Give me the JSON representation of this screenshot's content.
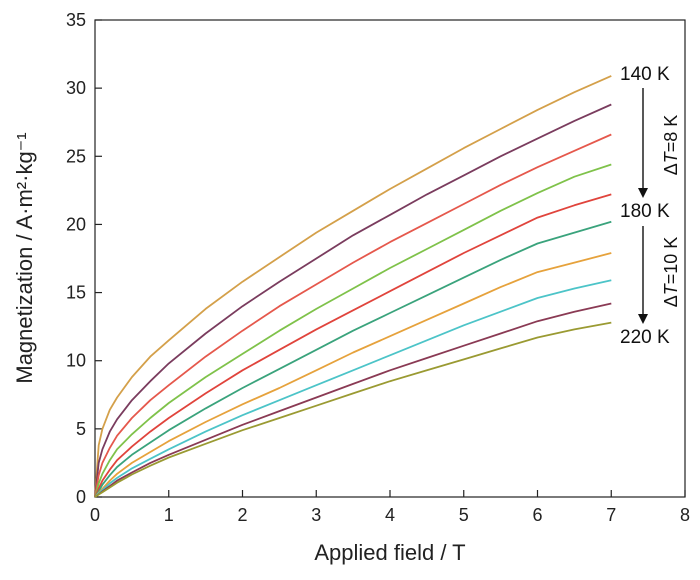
{
  "chart_data": {
    "type": "line",
    "xlabel": "Applied field / T",
    "ylabel": "Magnetization / A·m²·kg⁻¹",
    "xlim": [
      0,
      8
    ],
    "ylim": [
      0,
      35
    ],
    "xticks": [
      "0",
      "1",
      "2",
      "3",
      "4",
      "5",
      "6",
      "7",
      "8"
    ],
    "yticks": [
      "0",
      "5",
      "10",
      "15",
      "20",
      "25",
      "30",
      "35"
    ],
    "grid": false,
    "x": [
      0,
      0.05,
      0.1,
      0.2,
      0.3,
      0.5,
      0.75,
      1,
      1.5,
      2,
      2.5,
      3,
      3.5,
      4,
      4.5,
      5,
      5.5,
      6,
      6.5,
      7
    ],
    "series": [
      {
        "color": "#d4a04a",
        "values": [
          0,
          3.8,
          5.0,
          6.4,
          7.3,
          8.8,
          10.3,
          11.5,
          13.8,
          15.8,
          17.6,
          19.4,
          21.0,
          22.6,
          24.1,
          25.6,
          27.0,
          28.4,
          29.7,
          30.9
        ]
      },
      {
        "color": "#7a3c5e",
        "values": [
          0,
          2.5,
          3.5,
          4.8,
          5.7,
          7.1,
          8.5,
          9.8,
          12.0,
          14.0,
          15.8,
          17.5,
          19.2,
          20.7,
          22.2,
          23.6,
          25.0,
          26.3,
          27.6,
          28.8
        ]
      },
      {
        "color": "#e5584c",
        "values": [
          0,
          1.6,
          2.5,
          3.6,
          4.5,
          5.8,
          7.1,
          8.2,
          10.3,
          12.2,
          14.0,
          15.6,
          17.2,
          18.7,
          20.1,
          21.5,
          22.9,
          24.2,
          25.4,
          26.6
        ]
      },
      {
        "color": "#7fc24a",
        "values": [
          0,
          1.0,
          1.7,
          2.7,
          3.5,
          4.6,
          5.8,
          6.9,
          8.8,
          10.5,
          12.2,
          13.8,
          15.3,
          16.8,
          18.2,
          19.6,
          21.0,
          22.3,
          23.5,
          24.4
        ]
      },
      {
        "color": "#e0443c",
        "values": [
          0,
          0.6,
          1.2,
          2.0,
          2.7,
          3.7,
          4.8,
          5.8,
          7.6,
          9.3,
          10.8,
          12.3,
          13.7,
          15.1,
          16.5,
          17.9,
          19.2,
          20.5,
          21.4,
          22.2
        ]
      },
      {
        "color": "#3aa37c",
        "values": [
          0,
          0.4,
          0.9,
          1.6,
          2.2,
          3.1,
          4.0,
          4.9,
          6.5,
          8.0,
          9.4,
          10.8,
          12.2,
          13.5,
          14.8,
          16.1,
          17.4,
          18.6,
          19.4,
          20.2
        ]
      },
      {
        "color": "#e6a23c",
        "values": [
          0,
          0.3,
          0.6,
          1.2,
          1.7,
          2.5,
          3.3,
          4.1,
          5.5,
          6.8,
          8.0,
          9.3,
          10.6,
          11.8,
          13.0,
          14.2,
          15.4,
          16.5,
          17.2,
          17.9
        ]
      },
      {
        "color": "#4cc4c8",
        "values": [
          0,
          0.25,
          0.5,
          1.0,
          1.4,
          2.1,
          2.8,
          3.5,
          4.8,
          6.0,
          7.1,
          8.2,
          9.3,
          10.4,
          11.5,
          12.6,
          13.6,
          14.6,
          15.3,
          15.9
        ]
      },
      {
        "color": "#8a3a54",
        "values": [
          0,
          0.2,
          0.4,
          0.8,
          1.2,
          1.8,
          2.5,
          3.1,
          4.2,
          5.3,
          6.3,
          7.3,
          8.3,
          9.3,
          10.2,
          11.1,
          12.0,
          12.9,
          13.6,
          14.2
        ]
      },
      {
        "color": "#9a9a32",
        "values": [
          0,
          0.18,
          0.35,
          0.7,
          1.05,
          1.65,
          2.3,
          2.9,
          3.9,
          4.9,
          5.8,
          6.7,
          7.6,
          8.5,
          9.3,
          10.1,
          10.9,
          11.7,
          12.3,
          12.8
        ]
      }
    ],
    "annotations": {
      "top_label": "140 K",
      "mid_label": "180 K",
      "bottom_label": "220 K",
      "step1_delta": "Δ",
      "step1_var": "T",
      "step1_value": "=8 K",
      "step2_delta": "Δ",
      "step2_var": "T",
      "step2_value": "=10 K"
    }
  }
}
